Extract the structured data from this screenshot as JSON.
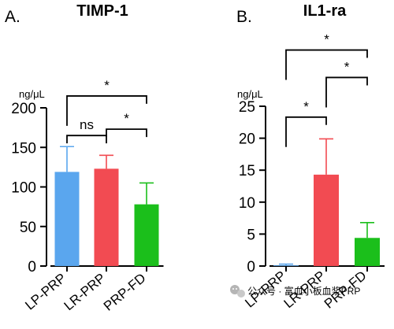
{
  "chart_data": [
    {
      "type": "bar",
      "panel_label": "A.",
      "title": "TIMP-1",
      "ylabel": "ng/μL",
      "ylim": [
        0,
        200
      ],
      "yticks": [
        0,
        50,
        100,
        150,
        200
      ],
      "categories": [
        "LP-PRP",
        "LR-PRP",
        "PRP-FD"
      ],
      "values": [
        119,
        123,
        78
      ],
      "error_upper": [
        151,
        140,
        105
      ],
      "colors": [
        "#5aa6ee",
        "#f24b52",
        "#1bbf1b"
      ],
      "error_colors": [
        "#5aa6ee",
        "#f24b52",
        "#1bbf1b"
      ],
      "grid": false,
      "significance": [
        {
          "from": 0,
          "to": 1,
          "label": "ns",
          "y": 165
        },
        {
          "from": 1,
          "to": 2,
          "label": "*",
          "y": 173
        },
        {
          "from": 0,
          "to": 2,
          "label": "*",
          "y": 215
        }
      ]
    },
    {
      "type": "bar",
      "panel_label": "B.",
      "title": "IL1-ra",
      "ylabel": "ng/μL",
      "ylim": [
        0,
        25
      ],
      "yticks": [
        0,
        5,
        10,
        15,
        20,
        25
      ],
      "categories": [
        "LP-PRP",
        "LR-PRP",
        "PRP-FD"
      ],
      "values": [
        0.1,
        14.3,
        4.4
      ],
      "error_upper": [
        0.3,
        19.9,
        6.8
      ],
      "colors": [
        "#5aa6ee",
        "#f24b52",
        "#1bbf1b"
      ],
      "error_colors": [
        "#5aa6ee",
        "#f24b52",
        "#1bbf1b"
      ],
      "grid": false,
      "significance": [
        {
          "from": 0,
          "to": 1,
          "label": "*",
          "y": 23.3
        },
        {
          "from": 1,
          "to": 2,
          "label": "*",
          "y": 29.5
        },
        {
          "from": 0,
          "to": 2,
          "label": "*",
          "y": 33.8
        }
      ]
    }
  ],
  "watermark": {
    "icon": "wechat-logo-icon",
    "text": "公众号 · 富血小板血浆PRP"
  }
}
